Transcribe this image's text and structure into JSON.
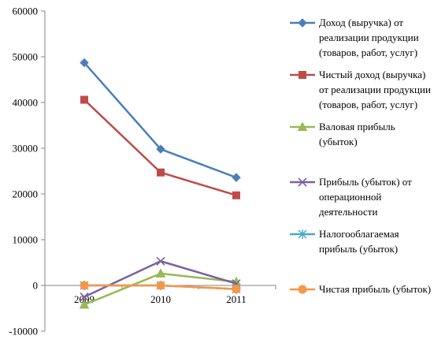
{
  "chart_data": {
    "type": "line",
    "x": [
      "2009",
      "2010",
      "2011"
    ],
    "ylim": [
      -10000,
      60000
    ],
    "yticks": [
      -10000,
      0,
      10000,
      20000,
      30000,
      40000,
      50000,
      60000
    ],
    "ytick_labels": [
      "-10000",
      "0",
      "10000",
      "20000",
      "30000",
      "40000",
      "50000",
      "60000"
    ],
    "grid": false,
    "legend_position": "right",
    "series": [
      {
        "name": "Доход (выручка) от реализации продукции (товаров, работ, услуг)",
        "name_lines": [
          "Доход (выручка) от",
          "реализации продукции",
          "(товаров, работ, услуг)"
        ],
        "values": [
          48700,
          29800,
          23600
        ],
        "color": "#4a7ebb",
        "marker": "diamond"
      },
      {
        "name": "Чистый доход (выручка) от реализации продукции (товаров, работ, услуг)",
        "name_lines": [
          "Чистый доход (выручка)",
          "от реализации продукции",
          "(товаров, работ, услуг)"
        ],
        "values": [
          40600,
          24700,
          19700
        ],
        "color": "#be4b48",
        "marker": "square"
      },
      {
        "name": "Валовая прибыль (убыток)",
        "name_lines": [
          "Валовая прибыль",
          "(убыток)"
        ],
        "values": [
          -4200,
          2600,
          800
        ],
        "color": "#98b954",
        "marker": "triangle"
      },
      {
        "name": "Прибыль (убыток) от операционной деятельности",
        "name_lines": [
          "Прибыль (убыток) от",
          "операционной",
          "деятельности"
        ],
        "values": [
          -2500,
          5300,
          400
        ],
        "color": "#7d60a0",
        "marker": "x"
      },
      {
        "name": "Налогооблагаемая прибыль (убыток)",
        "name_lines": [
          "Налогооблагаемая",
          "прибыль (убыток)"
        ],
        "values": [
          0,
          0,
          -800
        ],
        "color": "#46aac5",
        "marker": "star"
      },
      {
        "name": "Чистая прибыль (убыток)",
        "name_lines": [
          "Чистая прибыль (убыток)"
        ],
        "values": [
          0,
          0,
          -800
        ],
        "color": "#f79646",
        "marker": "circle"
      }
    ]
  }
}
